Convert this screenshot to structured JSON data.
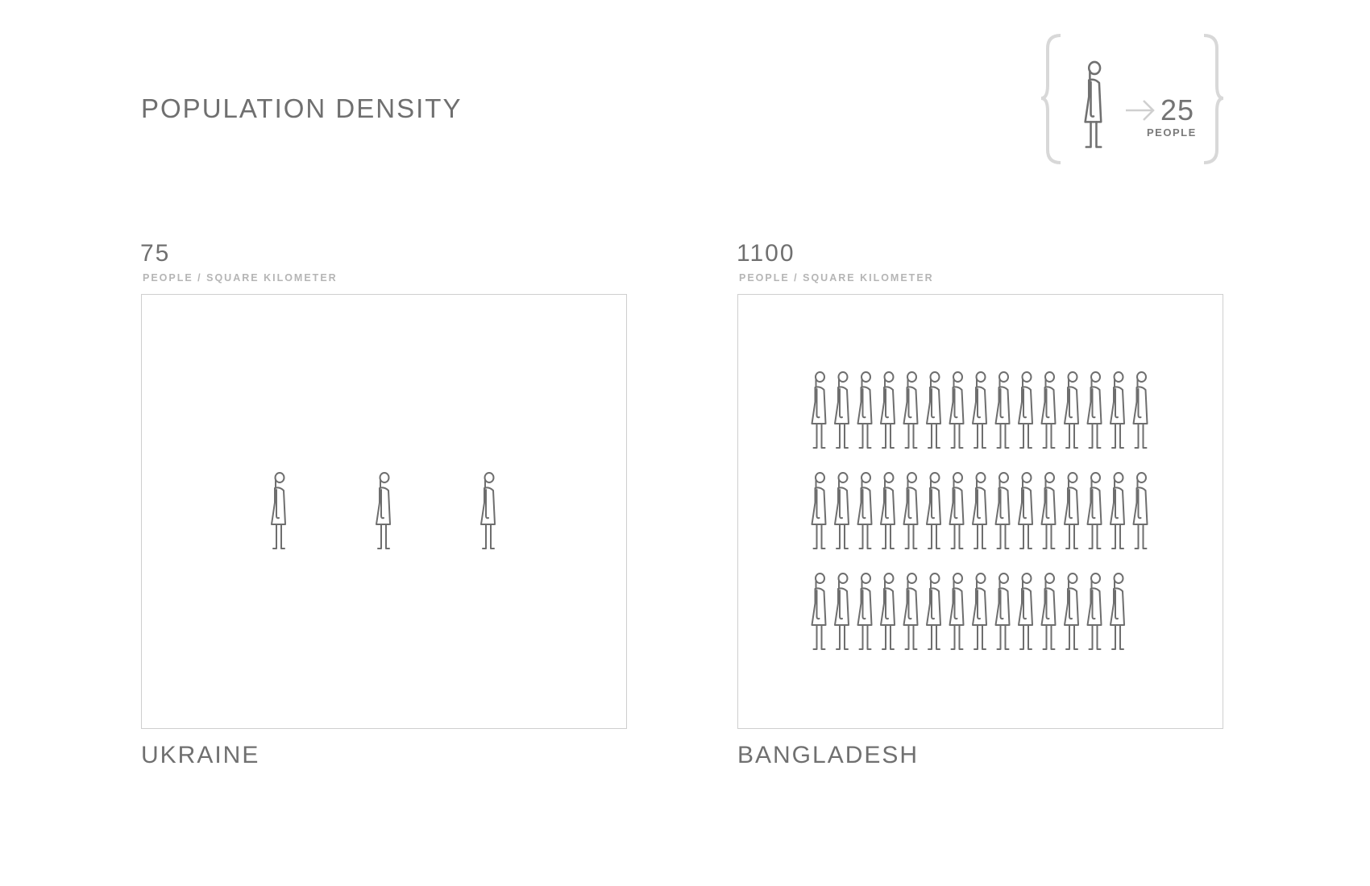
{
  "chart_data": {
    "type": "pictogram",
    "title": "POPULATION DENSITY",
    "legend": {
      "icon": "person-icon",
      "value": 25,
      "unit": "PEOPLE"
    },
    "unit": "PEOPLE / SQUARE KILOMETER",
    "categories": [
      "UKRAINE",
      "BANGLADESH"
    ],
    "values": [
      75,
      1100
    ],
    "icon_color": "#6e6e6e",
    "frame_color": "#cfcfcf"
  }
}
